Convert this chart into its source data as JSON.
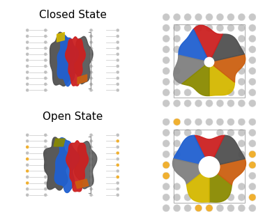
{
  "title_closed": "Closed State",
  "title_open": "Open State",
  "bg_color": "#ffffff",
  "lipid_color": "#c8c8c8",
  "lipid_head_color": "#b0b0b0",
  "gold_color": "#f0b030",
  "subunit_colors": {
    "blue": "#2060d0",
    "red": "#cc2020",
    "gray_dark": "#505050",
    "yellow": "#d4b800",
    "olive": "#8a8a00",
    "orange": "#cc6010",
    "gray_med": "#808080"
  },
  "fig_width": 4.0,
  "fig_height": 3.2
}
